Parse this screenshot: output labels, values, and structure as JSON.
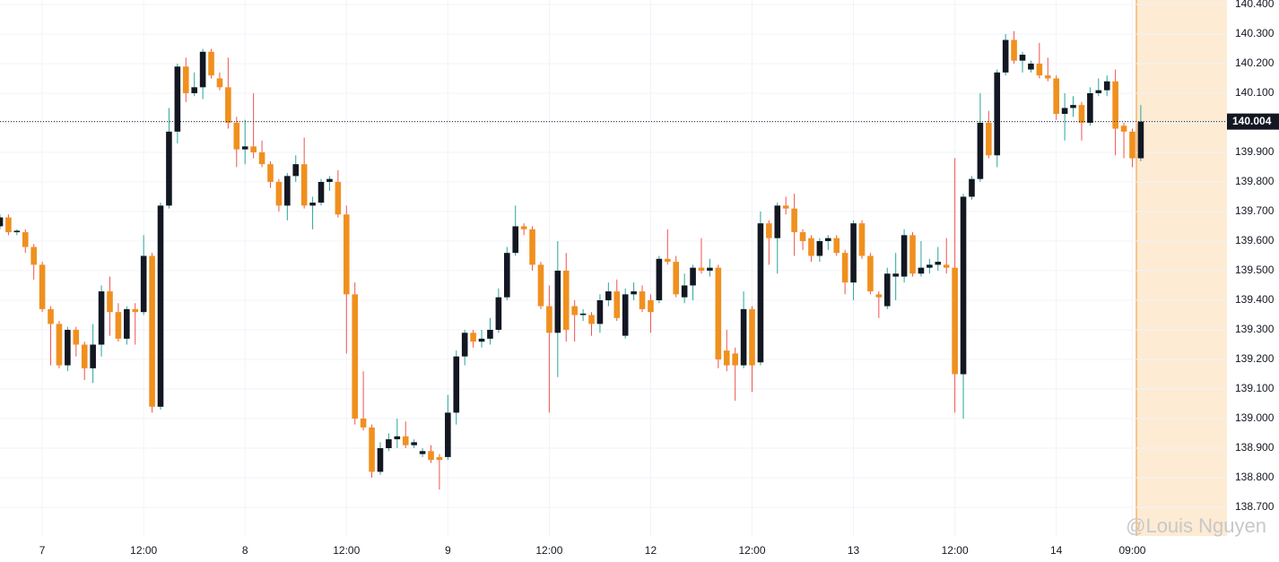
{
  "chart_data": {
    "type": "candlestick",
    "watermark": "@Louis Nguyen",
    "up_color": "#131722",
    "down_color": "#f0901e",
    "up_wick_color": "#26a69a",
    "down_wick_color": "#ef5350",
    "grid": true,
    "xlim": [
      -5,
      140.2
    ],
    "xticks": [
      {
        "value": 0,
        "label": "7"
      },
      {
        "value": 12,
        "label": "12:00"
      },
      {
        "value": 24,
        "label": "8"
      },
      {
        "value": 36,
        "label": "12:00"
      },
      {
        "value": 48,
        "label": "9"
      },
      {
        "value": 60,
        "label": "12:00"
      },
      {
        "value": 72,
        "label": "12"
      },
      {
        "value": 84,
        "label": "12:00"
      },
      {
        "value": 96,
        "label": "13"
      },
      {
        "value": 108,
        "label": "12:00"
      },
      {
        "value": 120,
        "label": "14"
      },
      {
        "value": 129,
        "label": "09:00"
      }
    ],
    "ylim": [
      138.603,
      140.415
    ],
    "yticks": [
      {
        "value": 140.4,
        "label": "140.400"
      },
      {
        "value": 140.3,
        "label": "140.300"
      },
      {
        "value": 140.2,
        "label": "140.200"
      },
      {
        "value": 140.1,
        "label": "140.100"
      },
      {
        "value": 140.0,
        "label": "140.000"
      },
      {
        "value": 139.9,
        "label": "139.900"
      },
      {
        "value": 139.8,
        "label": "139.800"
      },
      {
        "value": 139.7,
        "label": "139.700"
      },
      {
        "value": 139.6,
        "label": "139.600"
      },
      {
        "value": 139.5,
        "label": "139.500"
      },
      {
        "value": 139.4,
        "label": "139.400"
      },
      {
        "value": 139.3,
        "label": "139.300"
      },
      {
        "value": 139.2,
        "label": "139.200"
      },
      {
        "value": 139.1,
        "label": "139.100"
      },
      {
        "value": 139.0,
        "label": "139.000"
      },
      {
        "value": 138.9,
        "label": "138.900"
      },
      {
        "value": 138.8,
        "label": "138.800"
      },
      {
        "value": 138.7,
        "label": "138.700"
      }
    ],
    "x": [
      -5,
      -4,
      -3,
      -2,
      -1,
      0,
      1,
      2,
      3,
      4,
      5,
      6,
      7,
      8,
      9,
      10,
      11,
      12,
      13,
      14,
      15,
      16,
      17,
      18,
      19,
      20,
      21,
      22,
      23,
      24,
      25,
      26,
      27,
      28,
      29,
      30,
      31,
      32,
      33,
      34,
      35,
      36,
      37,
      38,
      39,
      40,
      41,
      42,
      43,
      44,
      45,
      46,
      47,
      48,
      49,
      50,
      51,
      52,
      53,
      54,
      55,
      56,
      57,
      58,
      59,
      60,
      61,
      62,
      63,
      64,
      65,
      66,
      67,
      68,
      69,
      70,
      71,
      72,
      73,
      74,
      75,
      76,
      77,
      78,
      79,
      80,
      81,
      82,
      83,
      84,
      85,
      86,
      87,
      88,
      89,
      90,
      91,
      92,
      93,
      94,
      95,
      96,
      97,
      98,
      99,
      100,
      101,
      102,
      103,
      104,
      105,
      106,
      107,
      108,
      109,
      110,
      111,
      112,
      113,
      114,
      115,
      116,
      117,
      118,
      119,
      120,
      121,
      122,
      123,
      124,
      125,
      126,
      127,
      128,
      129,
      130
    ],
    "open": [
      139.65,
      139.68,
      139.63,
      139.63,
      139.58,
      139.52,
      139.37,
      139.32,
      139.18,
      139.3,
      139.25,
      139.17,
      139.25,
      139.43,
      139.36,
      139.27,
      139.37,
      139.36,
      139.55,
      139.04,
      139.72,
      139.97,
      140.19,
      140.1,
      140.12,
      140.24,
      140.15,
      140.12,
      140.0,
      139.91,
      139.92,
      139.9,
      139.86,
      139.8,
      139.72,
      139.82,
      139.86,
      139.72,
      139.73,
      139.8,
      139.8,
      139.69,
      139.42,
      139.0,
      138.97,
      138.82,
      138.9,
      138.93,
      138.94,
      138.91,
      138.88,
      138.89,
      138.87,
      138.87,
      139.02,
      139.21,
      139.29,
      139.26,
      139.27,
      139.3,
      139.41,
      139.56,
      139.65,
      139.64,
      139.52,
      139.38,
      139.29,
      139.5,
      139.38,
      139.35,
      139.35,
      139.32,
      139.4,
      139.43,
      139.28,
      139.42,
      139.43,
      139.4,
      139.4,
      139.54,
      139.53,
      139.41,
      139.45,
      139.51,
      139.5,
      139.51,
      139.23,
      139.22,
      139.18,
      139.37,
      139.19,
      139.66,
      139.61,
      139.72,
      139.71,
      139.63,
      139.61,
      139.55,
      139.6,
      139.61,
      139.56,
      139.46,
      139.66,
      139.55,
      139.42,
      139.38,
      139.48,
      139.48,
      139.62,
      139.49,
      139.51,
      139.52,
      139.52,
      139.51,
      139.15,
      139.75,
      139.81,
      140.0,
      139.89,
      140.17,
      140.28,
      140.21,
      140.18,
      140.2,
      140.16,
      140.15,
      140.03,
      140.05,
      140.06,
      140.0,
      140.1,
      140.11,
      140.14,
      139.99,
      139.97,
      139.88
    ],
    "high": [
      139.69,
      139.69,
      139.64,
      139.64,
      139.59,
      139.53,
      139.38,
      139.33,
      139.31,
      139.31,
      139.26,
      139.32,
      139.45,
      139.48,
      139.39,
      139.38,
      139.39,
      139.62,
      139.56,
      139.73,
      140.05,
      140.2,
      140.22,
      140.17,
      140.25,
      140.25,
      140.17,
      140.22,
      140.02,
      140.01,
      140.1,
      139.94,
      139.87,
      139.81,
      139.83,
      139.89,
      139.95,
      139.75,
      139.81,
      139.82,
      139.84,
      139.72,
      139.46,
      139.16,
      138.98,
      138.92,
      138.95,
      139.0,
      138.99,
      138.93,
      138.9,
      138.91,
      138.88,
      139.08,
      139.23,
      139.3,
      139.3,
      139.3,
      139.34,
      139.44,
      139.58,
      139.72,
      139.66,
      139.65,
      139.53,
      139.45,
      139.6,
      139.56,
      139.4,
      139.37,
      139.36,
      139.42,
      139.46,
      139.47,
      139.44,
      139.46,
      139.45,
      139.42,
      139.55,
      139.64,
      139.55,
      139.49,
      139.52,
      139.61,
      139.54,
      139.52,
      139.3,
      139.24,
      139.43,
      139.38,
      139.7,
      139.67,
      139.73,
      139.75,
      139.76,
      139.64,
      139.62,
      139.61,
      139.62,
      139.62,
      139.57,
      139.67,
      139.67,
      139.56,
      139.43,
      139.51,
      139.56,
      139.64,
      139.63,
      139.6,
      139.54,
      139.58,
      139.61,
      139.88,
      139.76,
      139.82,
      140.1,
      140.04,
      140.18,
      140.3,
      140.31,
      140.24,
      140.21,
      140.27,
      140.22,
      140.16,
      140.1,
      140.09,
      140.07,
      140.12,
      140.15,
      140.16,
      140.18,
      140.0,
      139.98,
      140.06
    ],
    "low": [
      139.64,
      139.62,
      139.62,
      139.56,
      139.47,
      139.36,
      139.18,
      139.17,
      139.16,
      139.21,
      139.13,
      139.12,
      139.21,
      139.28,
      139.26,
      139.25,
      139.25,
      139.35,
      139.02,
      139.03,
      139.71,
      139.93,
      140.07,
      140.09,
      140.08,
      140.15,
      140.11,
      139.98,
      139.85,
      139.86,
      139.88,
      139.85,
      139.78,
      139.7,
      139.67,
      139.8,
      139.71,
      139.64,
      139.72,
      139.77,
      139.68,
      139.22,
      138.98,
      138.96,
      138.8,
      138.81,
      138.89,
      138.9,
      138.9,
      138.9,
      138.87,
      138.85,
      138.76,
      138.86,
      138.98,
      139.18,
      139.24,
      139.24,
      139.25,
      139.29,
      139.4,
      139.55,
      139.62,
      139.5,
      139.37,
      139.02,
      139.14,
      139.26,
      139.26,
      139.33,
      139.28,
      139.29,
      139.38,
      139.33,
      139.27,
      139.4,
      139.36,
      139.29,
      139.39,
      139.52,
      139.41,
      139.39,
      139.4,
      139.49,
      139.48,
      139.17,
      139.16,
      139.06,
      139.17,
      139.09,
      139.18,
      139.52,
      139.49,
      139.69,
      139.55,
      139.57,
      139.53,
      139.53,
      139.57,
      139.55,
      139.42,
      139.4,
      139.54,
      139.42,
      139.34,
      139.37,
      139.4,
      139.46,
      139.48,
      139.48,
      139.49,
      139.5,
      139.49,
      139.02,
      139.0,
      139.74,
      139.8,
      139.88,
      139.85,
      140.16,
      140.2,
      140.17,
      140.17,
      140.15,
      140.14,
      140.01,
      139.94,
      140.02,
      139.94,
      139.99,
      140.09,
      140.09,
      139.89,
      139.88,
      139.85,
      139.87
    ],
    "close": [
      139.68,
      139.63,
      139.635,
      139.58,
      139.52,
      139.37,
      139.32,
      139.18,
      139.3,
      139.25,
      139.17,
      139.25,
      139.43,
      139.36,
      139.27,
      139.37,
      139.36,
      139.55,
      139.04,
      139.72,
      139.97,
      140.19,
      140.1,
      140.12,
      140.24,
      140.16,
      140.12,
      140.0,
      139.91,
      139.92,
      139.9,
      139.86,
      139.8,
      139.72,
      139.82,
      139.86,
      139.72,
      139.73,
      139.8,
      139.81,
      139.69,
      139.42,
      139.0,
      138.97,
      138.82,
      138.9,
      138.93,
      138.94,
      138.91,
      138.92,
      138.89,
      138.86,
      138.86,
      139.02,
      139.21,
      139.29,
      139.26,
      139.27,
      139.3,
      139.41,
      139.56,
      139.65,
      139.64,
      139.52,
      139.38,
      139.29,
      139.5,
      139.3,
      139.35,
      139.355,
      139.32,
      139.4,
      139.43,
      139.34,
      139.42,
      139.43,
      139.37,
      139.36,
      139.54,
      139.53,
      139.42,
      139.45,
      139.51,
      139.5,
      139.51,
      139.2,
      139.18,
      139.18,
      139.37,
      139.18,
      139.66,
      139.61,
      139.72,
      139.71,
      139.63,
      139.6,
      139.55,
      139.6,
      139.61,
      139.56,
      139.46,
      139.66,
      139.55,
      139.43,
      139.41,
      139.49,
      139.49,
      139.62,
      139.49,
      139.51,
      139.52,
      139.53,
      139.51,
      139.15,
      139.75,
      139.81,
      140.0,
      139.89,
      140.17,
      140.28,
      140.21,
      140.23,
      140.2,
      140.16,
      140.15,
      140.03,
      140.05,
      140.06,
      140.0,
      140.1,
      140.11,
      140.14,
      139.98,
      139.97,
      139.88,
      140.004
    ]
  }
}
